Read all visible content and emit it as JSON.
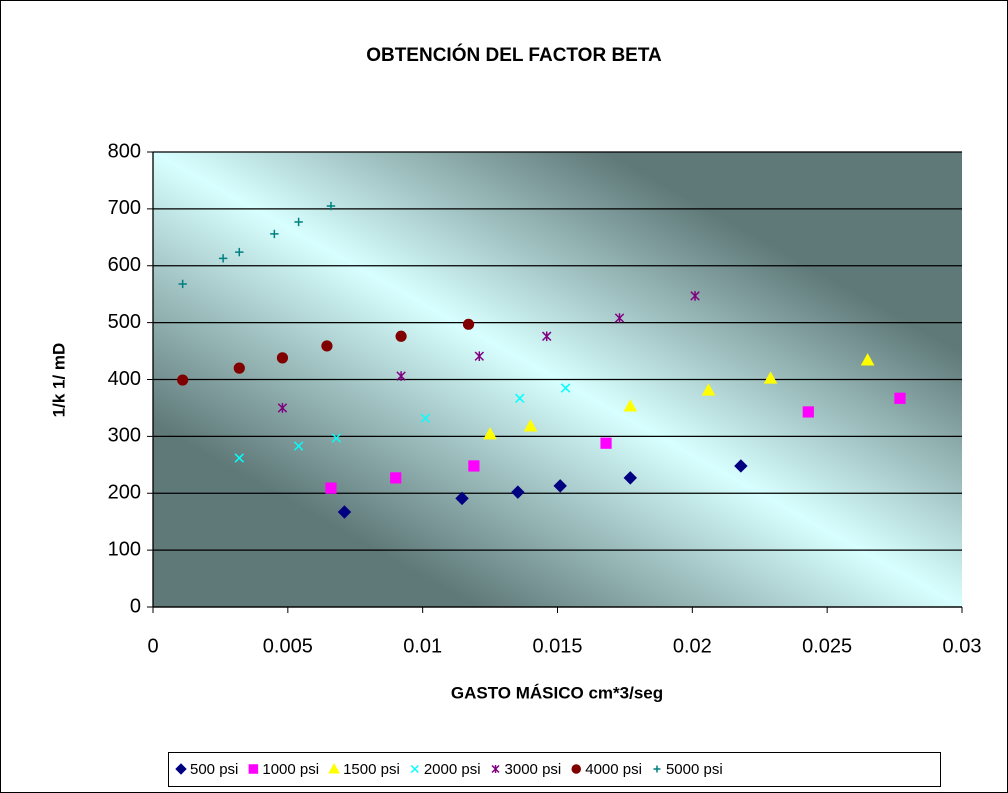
{
  "chart_data": {
    "type": "scatter",
    "title": "OBTENCIÓN  DEL FACTOR  BETA",
    "x_label": "GASTO MÁSICO cm*3/seg",
    "y_label": "1/k  1/ mD",
    "xlim": [
      0,
      0.03
    ],
    "xticks": [
      0,
      0.005,
      0.01,
      0.015,
      0.02,
      0.025,
      0.03
    ],
    "ylim": [
      0,
      800
    ],
    "yticks": [
      0,
      100,
      200,
      300,
      400,
      500,
      600,
      700,
      800
    ],
    "grid": true,
    "legend": "bottom",
    "series": [
      {
        "name": "500 psi",
        "color": "#000080",
        "marker": "diamond",
        "x": [
          0.0071,
          0.01146,
          0.01353,
          0.0151,
          0.0177,
          0.0218
        ],
        "values": [
          167,
          191,
          202,
          213,
          227,
          248
        ]
      },
      {
        "name": "1000 psi",
        "color": "#ff00ff",
        "marker": "square",
        "x": [
          0.0066,
          0.009,
          0.0119,
          0.0168,
          0.0243,
          0.0277
        ],
        "values": [
          209,
          227,
          248,
          288,
          343,
          367
        ]
      },
      {
        "name": "1500 psi",
        "color": "#ffff00",
        "marker": "triangle",
        "x": [
          0.0125,
          0.014,
          0.0177,
          0.0206,
          0.0229,
          0.0265
        ],
        "values": [
          304,
          318,
          353,
          381,
          402,
          434
        ]
      },
      {
        "name": "2000 psi",
        "color": "#00ffff",
        "marker": "x",
        "x": [
          0.0032,
          0.0054,
          0.0068,
          0.0101,
          0.0136,
          0.0153
        ],
        "values": [
          262,
          283,
          297,
          332,
          367,
          385
        ]
      },
      {
        "name": "3000 psi",
        "color": "#800080",
        "marker": "star",
        "x": [
          0.0048,
          0.0092,
          0.0121,
          0.0146,
          0.0173,
          0.0201
        ],
        "values": [
          350,
          406,
          441,
          476,
          508,
          547
        ]
      },
      {
        "name": "4000 psi",
        "color": "#800000",
        "marker": "circle",
        "x": [
          0.0011,
          0.0032,
          0.0048,
          0.00645,
          0.0092,
          0.0117
        ],
        "values": [
          399,
          420,
          438,
          459,
          476,
          497
        ]
      },
      {
        "name": "5000 psi",
        "color": "#008080",
        "marker": "plus",
        "x": [
          0.0011,
          0.0026,
          0.0032,
          0.0045,
          0.0054,
          0.0066
        ],
        "values": [
          568,
          613,
          624,
          656,
          677,
          705
        ]
      }
    ]
  }
}
